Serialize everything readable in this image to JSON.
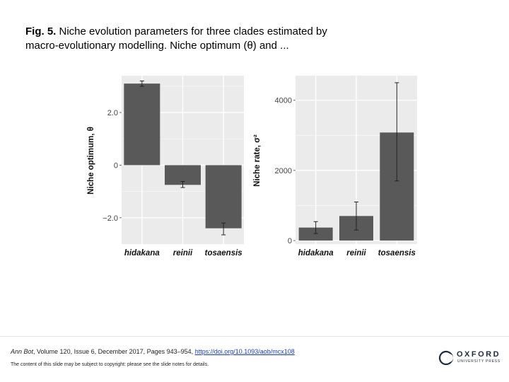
{
  "caption": {
    "lead": "Fig. 5.",
    "line1": " Niche evolution parameters for three clades estimated by",
    "line2": "macro-evolutionary modelling. Niche optimum (θ) and ..."
  },
  "chart_data": [
    {
      "type": "bar",
      "categories": [
        "hidakana",
        "reinii",
        "tosaensis"
      ],
      "values": [
        3.1,
        -0.75,
        -2.4
      ],
      "error_low": [
        3.0,
        -0.85,
        -2.65
      ],
      "error_high": [
        3.2,
        -0.62,
        -2.2
      ],
      "ylabel": "Niche optimum, θ",
      "yticks": [
        -2.0,
        0,
        2.0
      ],
      "yticklabels": [
        "−2.0",
        "0",
        "2.0"
      ],
      "ylim": [
        -3.0,
        3.4
      ],
      "grid": true,
      "bar_color": "#595959"
    },
    {
      "type": "bar",
      "categories": [
        "hidakana",
        "reinii",
        "tosaensis"
      ],
      "values": [
        370,
        700,
        3080
      ],
      "error_low": [
        200,
        300,
        1700
      ],
      "error_high": [
        540,
        1100,
        4500
      ],
      "ylabel": "Niche rate, σ²",
      "yticks": [
        0,
        2000,
        4000
      ],
      "yticklabels": [
        "0",
        "2000",
        "4000"
      ],
      "ylim": [
        -100,
        4700
      ],
      "grid": true,
      "bar_color": "#595959"
    }
  ],
  "footer": {
    "journal": "Ann Bot",
    "citation": ", Volume 120, Issue 6, December 2017, Pages 943–954, ",
    "doi": "https://doi.org/10.1093/aob/mcx108",
    "copyright": "The content of this slide may be subject to copyright: please see the slide notes for details."
  },
  "logo": {
    "name": "OXFORD",
    "press": "UNIVERSITY PRESS"
  }
}
